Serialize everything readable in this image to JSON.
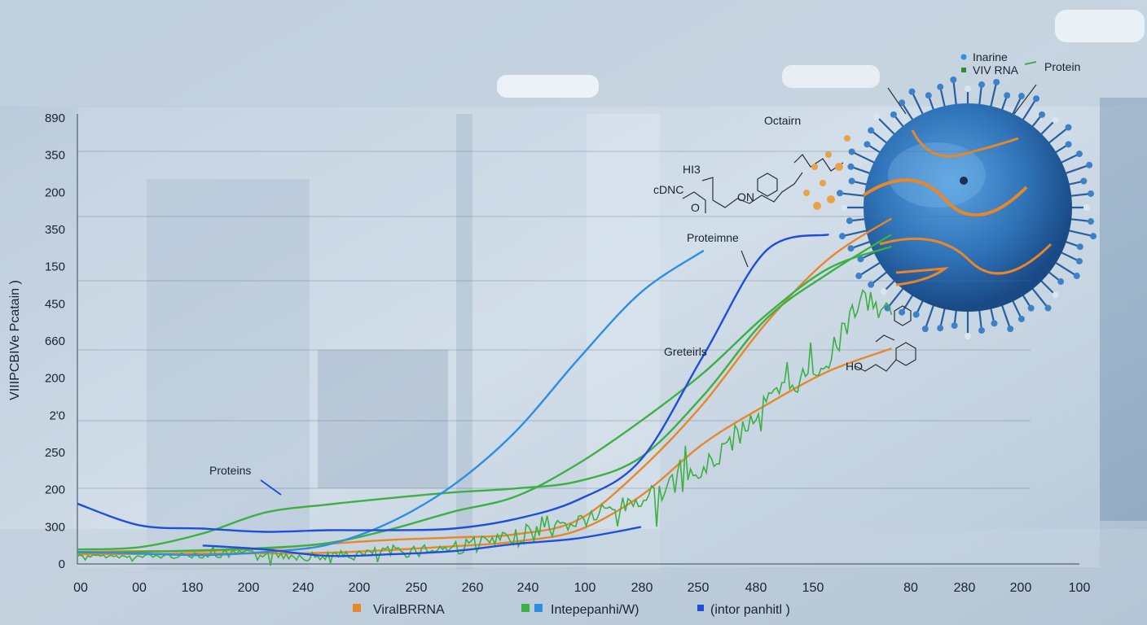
{
  "chart_data": {
    "type": "line",
    "ylabel": "VIIIPCBIVe Pcatain )",
    "y_ticks": [
      "890",
      "350",
      "200",
      "350",
      "150",
      "450",
      "660",
      "200",
      "2'0",
      "250",
      "200",
      "300",
      "0"
    ],
    "x_ticks": [
      "00",
      "00",
      "180",
      "200",
      "240",
      "200",
      "250",
      "260",
      "240",
      "100",
      "280",
      "250",
      "480",
      "150",
      "80",
      "280",
      "200",
      "100"
    ],
    "grid": true,
    "legend": {
      "placement": "bottom",
      "entries": [
        {
          "label": "ViralBRRNA",
          "color": "#e8872a"
        },
        {
          "label": "Intepepanhi/W)",
          "color": "#3cb043"
        },
        {
          "label": "(intor panhitl )",
          "color": "#1f4fd8"
        }
      ]
    },
    "top_legend": {
      "placement": "top-right",
      "entries": [
        {
          "label": "Inarine",
          "color": "#2d8fe0"
        },
        {
          "label": "VIV RNA",
          "color": "#2e8b3a"
        },
        {
          "label": "Protein",
          "color": "#3cb043"
        }
      ]
    },
    "annotations": [
      "Octairn",
      "HI3",
      "cDNC",
      "O",
      "ON",
      "Proteimne",
      "Greteirls",
      "Proteins",
      "HO"
    ],
    "series": [
      {
        "name": "ViralBRRNA",
        "color": "#e8872a",
        "style": "smooth",
        "x": [
          0,
          1,
          2,
          3,
          4,
          5,
          6,
          7,
          8,
          9,
          10,
          11,
          12,
          13
        ],
        "y": [
          15,
          16,
          16,
          19,
          25,
          30,
          33,
          37,
          55,
          118,
          200,
          300,
          380,
          430
        ]
      },
      {
        "name": "ViralBRRNA",
        "color": "#e8872a",
        "style": "smooth",
        "x": [
          0,
          2,
          4,
          6,
          7,
          8,
          9,
          10,
          11,
          12,
          13
        ],
        "y": [
          12,
          13,
          14,
          22,
          28,
          42,
          85,
          150,
          198,
          240,
          268
        ]
      },
      {
        "name": "Intepepanhi/W)",
        "color": "#3cb043",
        "style": "smooth",
        "x": [
          0,
          1,
          2,
          3,
          4,
          5,
          6,
          7,
          8,
          9,
          10,
          11,
          12,
          13
        ],
        "y": [
          18,
          21,
          38,
          64,
          74,
          82,
          89,
          94,
          103,
          133,
          210,
          305,
          362,
          410
        ]
      },
      {
        "name": "Intepepanhi/W)",
        "color": "#3cb043",
        "style": "smooth",
        "x": [
          0,
          1,
          2,
          3,
          4,
          5,
          6,
          7,
          8,
          9,
          10,
          11,
          12,
          13
        ],
        "y": [
          14,
          15,
          17,
          20,
          26,
          43,
          65,
          84,
          125,
          178,
          238,
          310,
          368,
          395
        ]
      },
      {
        "name": "Intepepanhi/W)",
        "color": "#3cb043",
        "style": "noisy",
        "x": [
          0,
          1,
          2,
          3,
          4,
          5,
          6,
          7,
          8,
          9,
          10,
          11,
          12,
          12.5,
          13
        ],
        "y": [
          10,
          9,
          11,
          13,
          8,
          15,
          20,
          32,
          53,
          80,
          115,
          200,
          255,
          330,
          310
        ]
      },
      {
        "name": "Intepepanhi/W)",
        "color": "#2d8fe0",
        "style": "smooth",
        "x": [
          0,
          1,
          2,
          3,
          4,
          5,
          6,
          7,
          8,
          9,
          10
        ],
        "y": [
          15,
          13,
          11,
          15,
          24,
          52,
          98,
          165,
          255,
          338,
          390
        ]
      },
      {
        "name": "(intor panhitl )",
        "color": "#1f4fd8",
        "style": "smooth",
        "x": [
          0,
          1,
          2,
          3,
          4,
          5,
          6,
          7,
          8,
          9,
          10,
          11,
          12
        ],
        "y": [
          75,
          48,
          44,
          40,
          42,
          42,
          44,
          56,
          80,
          130,
          260,
          390,
          410
        ]
      },
      {
        "name": "(intor panhitl )",
        "color": "#1f4fd8",
        "style": "smooth",
        "x": [
          2,
          3,
          4,
          5,
          6,
          7,
          8,
          9
        ],
        "y": [
          23,
          18,
          10,
          12,
          16,
          25,
          32,
          46
        ]
      }
    ],
    "xlim": [
      0,
      16
    ],
    "ylim": [
      0,
      560
    ]
  }
}
